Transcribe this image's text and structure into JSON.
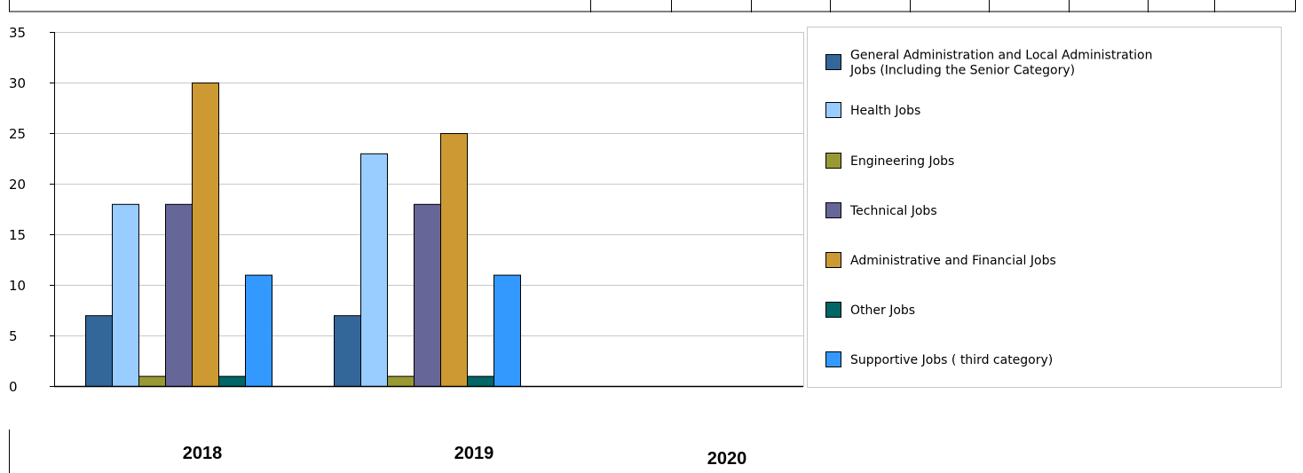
{
  "chart_data": {
    "type": "bar",
    "categories": [
      "2018",
      "2019",
      "2020"
    ],
    "ylim": [
      0,
      35
    ],
    "yticks": [
      0,
      5,
      10,
      15,
      20,
      25,
      30,
      35
    ],
    "grid": true,
    "legend_position": "right",
    "series": [
      {
        "name": "General Administration and Local Administration Jobs (Including the Senior Category)",
        "color": "#336699",
        "values": [
          7,
          7,
          null
        ]
      },
      {
        "name": "Health Jobs",
        "color": "#99ccff",
        "values": [
          18,
          23,
          null
        ]
      },
      {
        "name": "Engineering Jobs",
        "color": "#999933",
        "values": [
          1,
          1,
          null
        ]
      },
      {
        "name": "Technical Jobs",
        "color": "#666699",
        "values": [
          18,
          18,
          null
        ]
      },
      {
        "name": "Administrative and Financial Jobs",
        "color": "#cc9933",
        "values": [
          30,
          25,
          null
        ]
      },
      {
        "name": "Other Jobs",
        "color": "#006666",
        "values": [
          1,
          1,
          null
        ]
      },
      {
        "name": "Supportive Jobs ( third category)",
        "color": "#3399ff",
        "values": [
          11,
          11,
          null
        ]
      }
    ]
  },
  "legend": {
    "items": [
      {
        "lines": [
          "General Administration and Local Administration",
          "Jobs (Including the Senior Category)"
        ]
      },
      {
        "lines": [
          "Health Jobs"
        ]
      },
      {
        "lines": [
          "Engineering Jobs"
        ]
      },
      {
        "lines": [
          "Technical Jobs"
        ]
      },
      {
        "lines": [
          "Administrative and Financial Jobs"
        ]
      },
      {
        "lines": [
          "Other Jobs"
        ]
      },
      {
        "lines": [
          "Supportive Jobs ( third category)"
        ]
      }
    ]
  }
}
